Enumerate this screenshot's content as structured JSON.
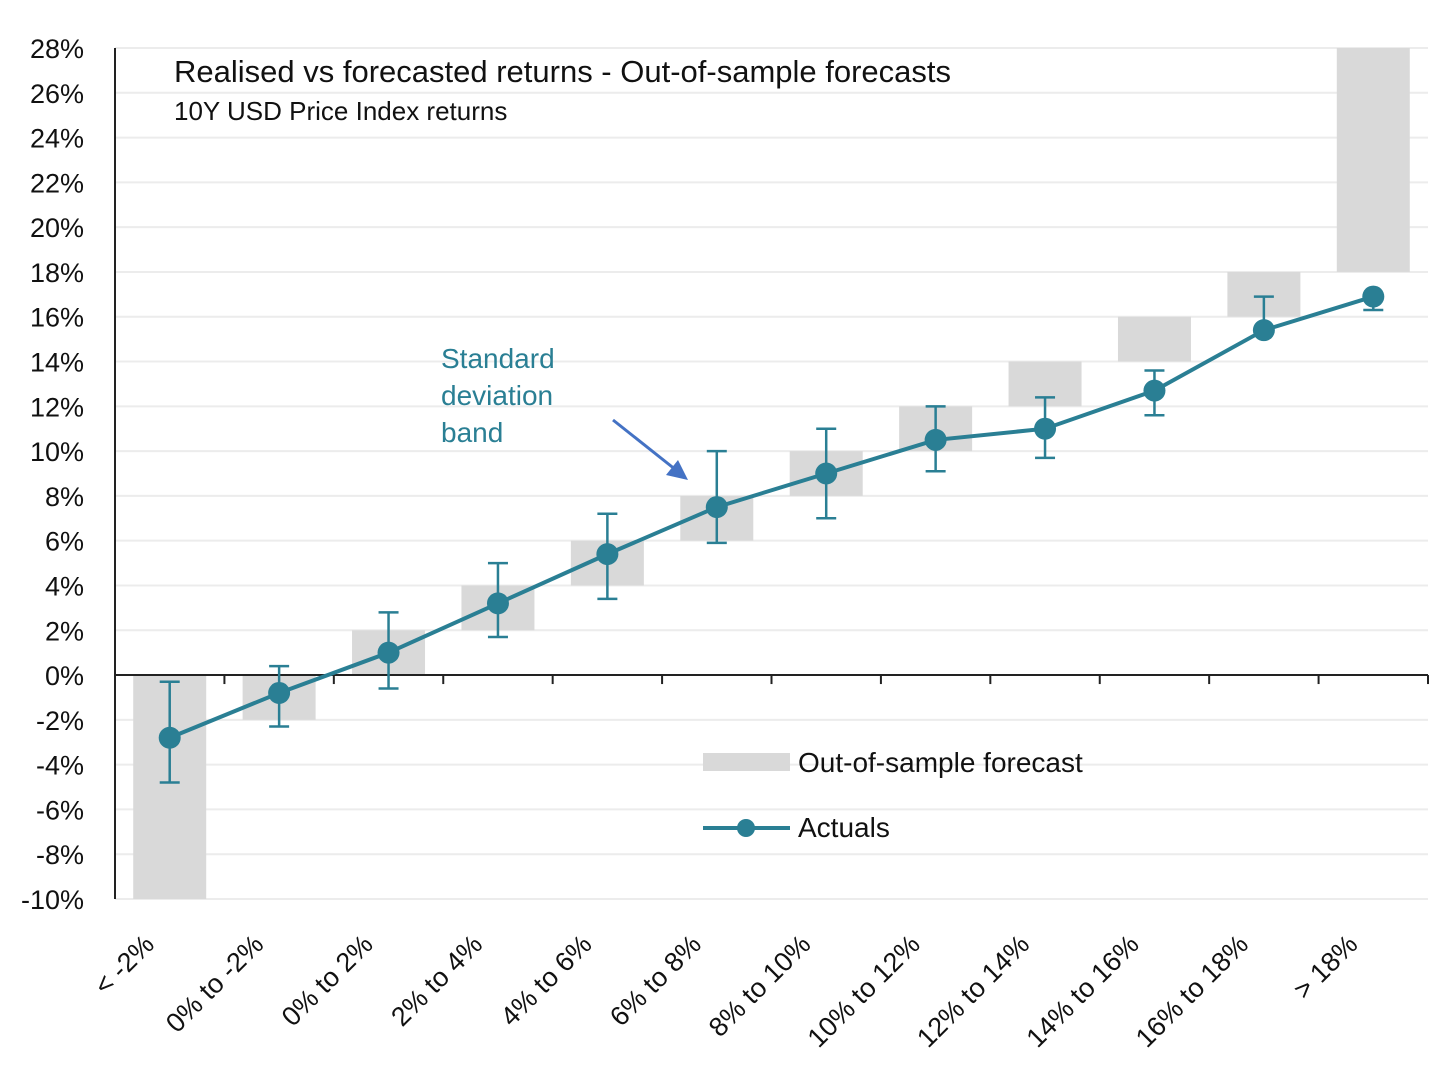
{
  "chart_data": {
    "type": "bar",
    "title": "Realised vs forecasted returns - Out-of-sample forecasts",
    "subtitle": "10Y USD Price Index returns",
    "categories": [
      "< -2%",
      "0% to -2%",
      "0% to 2%",
      "2% to 4%",
      "4% to 6%",
      "6% to 8%",
      "8% to 10%",
      "10% to 12%",
      "12% to 14%",
      "14% to 16%",
      "16% to 18%",
      "> 18%"
    ],
    "y_tick_labels": [
      "28%",
      "26%",
      "24%",
      "22%",
      "20%",
      "18%",
      "16%",
      "14%",
      "12%",
      "10%",
      "8%",
      "6%",
      "4%",
      "2%",
      "0%",
      "-2%",
      "-4%",
      "-6%",
      "-8%",
      "-10%"
    ],
    "ylim": [
      -10,
      28
    ],
    "grid": true,
    "legend_position": "bottom-right",
    "series": [
      {
        "name": "Out-of-sample forecast",
        "type": "floating-bar",
        "color": "#d9d9d9",
        "ranges": [
          [
            -10,
            0
          ],
          [
            -2,
            0
          ],
          [
            0,
            2
          ],
          [
            2,
            4
          ],
          [
            4,
            6
          ],
          [
            6,
            8
          ],
          [
            8,
            10
          ],
          [
            10,
            12
          ],
          [
            12,
            14
          ],
          [
            14,
            16
          ],
          [
            16,
            18
          ],
          [
            18,
            28
          ]
        ]
      },
      {
        "name": "Actuals",
        "type": "line",
        "color": "#2a7f94",
        "values": [
          -2.8,
          -0.8,
          1.0,
          3.2,
          5.4,
          7.5,
          9.0,
          10.5,
          11.0,
          12.7,
          15.4,
          16.9
        ],
        "error_low": [
          -4.8,
          -2.3,
          -0.6,
          1.7,
          3.4,
          5.9,
          7.0,
          9.1,
          9.7,
          11.6,
          15.4,
          16.3
        ],
        "error_high": [
          -0.3,
          0.4,
          2.8,
          5.0,
          7.2,
          10.0,
          11.0,
          12.0,
          12.4,
          13.6,
          16.9,
          16.9
        ]
      }
    ],
    "annotation": {
      "lines": [
        "Standard",
        "deviation",
        "band"
      ],
      "color": "#2a7f94",
      "arrow_color": "#4472c4"
    }
  }
}
